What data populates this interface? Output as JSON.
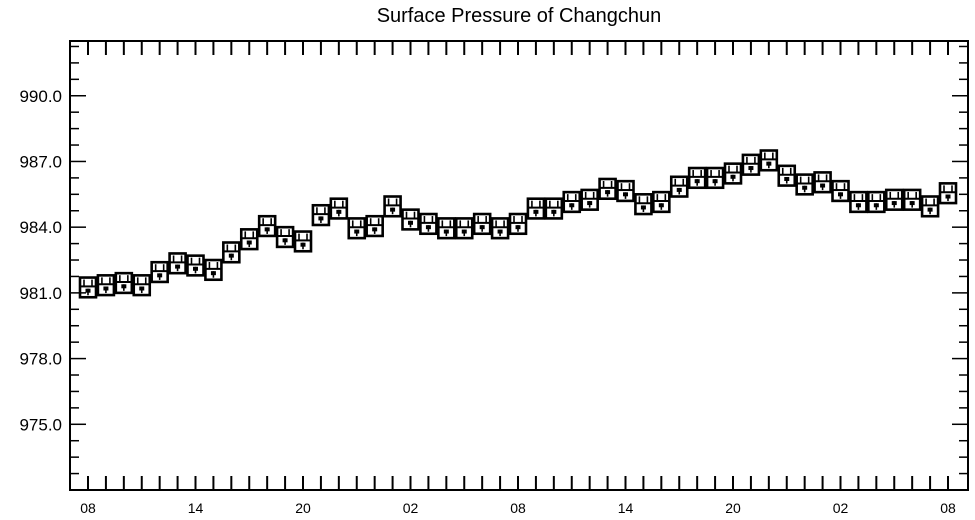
{
  "chart_data": {
    "type": "boxplot",
    "title": "Surface Pressure of Changchun",
    "xlabel": "",
    "ylabel": "",
    "ylim": [
      972.0,
      992.5
    ],
    "y_ticks": [
      "975.0",
      "978.0",
      "981.0",
      "984.0",
      "987.0",
      "990.0"
    ],
    "y_tick_values": [
      975.0,
      978.0,
      981.0,
      984.0,
      987.0,
      990.0
    ],
    "x_tick_labels": [
      "08",
      "14",
      "20",
      "02",
      "08",
      "14",
      "20",
      "02",
      "08"
    ],
    "x_tick_label_steps": [
      0,
      6,
      12,
      18,
      24,
      30,
      36,
      42,
      48
    ],
    "step_hours": 1,
    "steps": 49,
    "series": [
      {
        "median": [
          981.1,
          981.2,
          981.3,
          981.2,
          981.8,
          982.2,
          982.1,
          981.9,
          982.7,
          983.3,
          983.9,
          983.4,
          983.2,
          984.4,
          984.7,
          983.8,
          983.9,
          984.8,
          984.2,
          984.0,
          983.8,
          983.8,
          984.0,
          983.8,
          984.0,
          984.7,
          984.7,
          985.0,
          985.1,
          985.6,
          985.5,
          984.9,
          985.0,
          985.7,
          986.1,
          986.1,
          986.3,
          986.7,
          986.9,
          986.2,
          985.8,
          985.9,
          985.5,
          985.0,
          985.0,
          985.1,
          985.1,
          984.8,
          985.4
        ],
        "box_low": [
          980.8,
          980.9,
          981.0,
          980.9,
          981.5,
          981.9,
          981.8,
          981.6,
          982.4,
          983.0,
          983.6,
          983.1,
          982.9,
          984.1,
          984.4,
          983.5,
          983.6,
          984.5,
          983.9,
          983.7,
          983.5,
          983.5,
          983.7,
          983.5,
          983.7,
          984.4,
          984.4,
          984.7,
          984.8,
          985.3,
          985.2,
          984.6,
          984.7,
          985.4,
          985.8,
          985.8,
          986.0,
          986.4,
          986.6,
          985.9,
          985.5,
          985.6,
          985.2,
          984.7,
          984.7,
          984.8,
          984.8,
          984.5,
          985.1
        ],
        "box_high": [
          981.7,
          981.8,
          981.9,
          981.8,
          982.4,
          982.8,
          982.7,
          982.5,
          983.3,
          983.9,
          984.5,
          984.0,
          983.8,
          985.0,
          985.3,
          984.4,
          984.5,
          985.4,
          984.8,
          984.6,
          984.4,
          984.4,
          984.6,
          984.4,
          984.6,
          985.3,
          985.3,
          985.6,
          985.7,
          986.2,
          986.1,
          985.5,
          985.6,
          986.3,
          986.7,
          986.7,
          986.9,
          987.3,
          987.5,
          986.8,
          986.4,
          986.5,
          986.1,
          985.6,
          985.6,
          985.7,
          985.7,
          985.4,
          986.0
        ]
      }
    ],
    "grid": false,
    "legend": "none"
  }
}
